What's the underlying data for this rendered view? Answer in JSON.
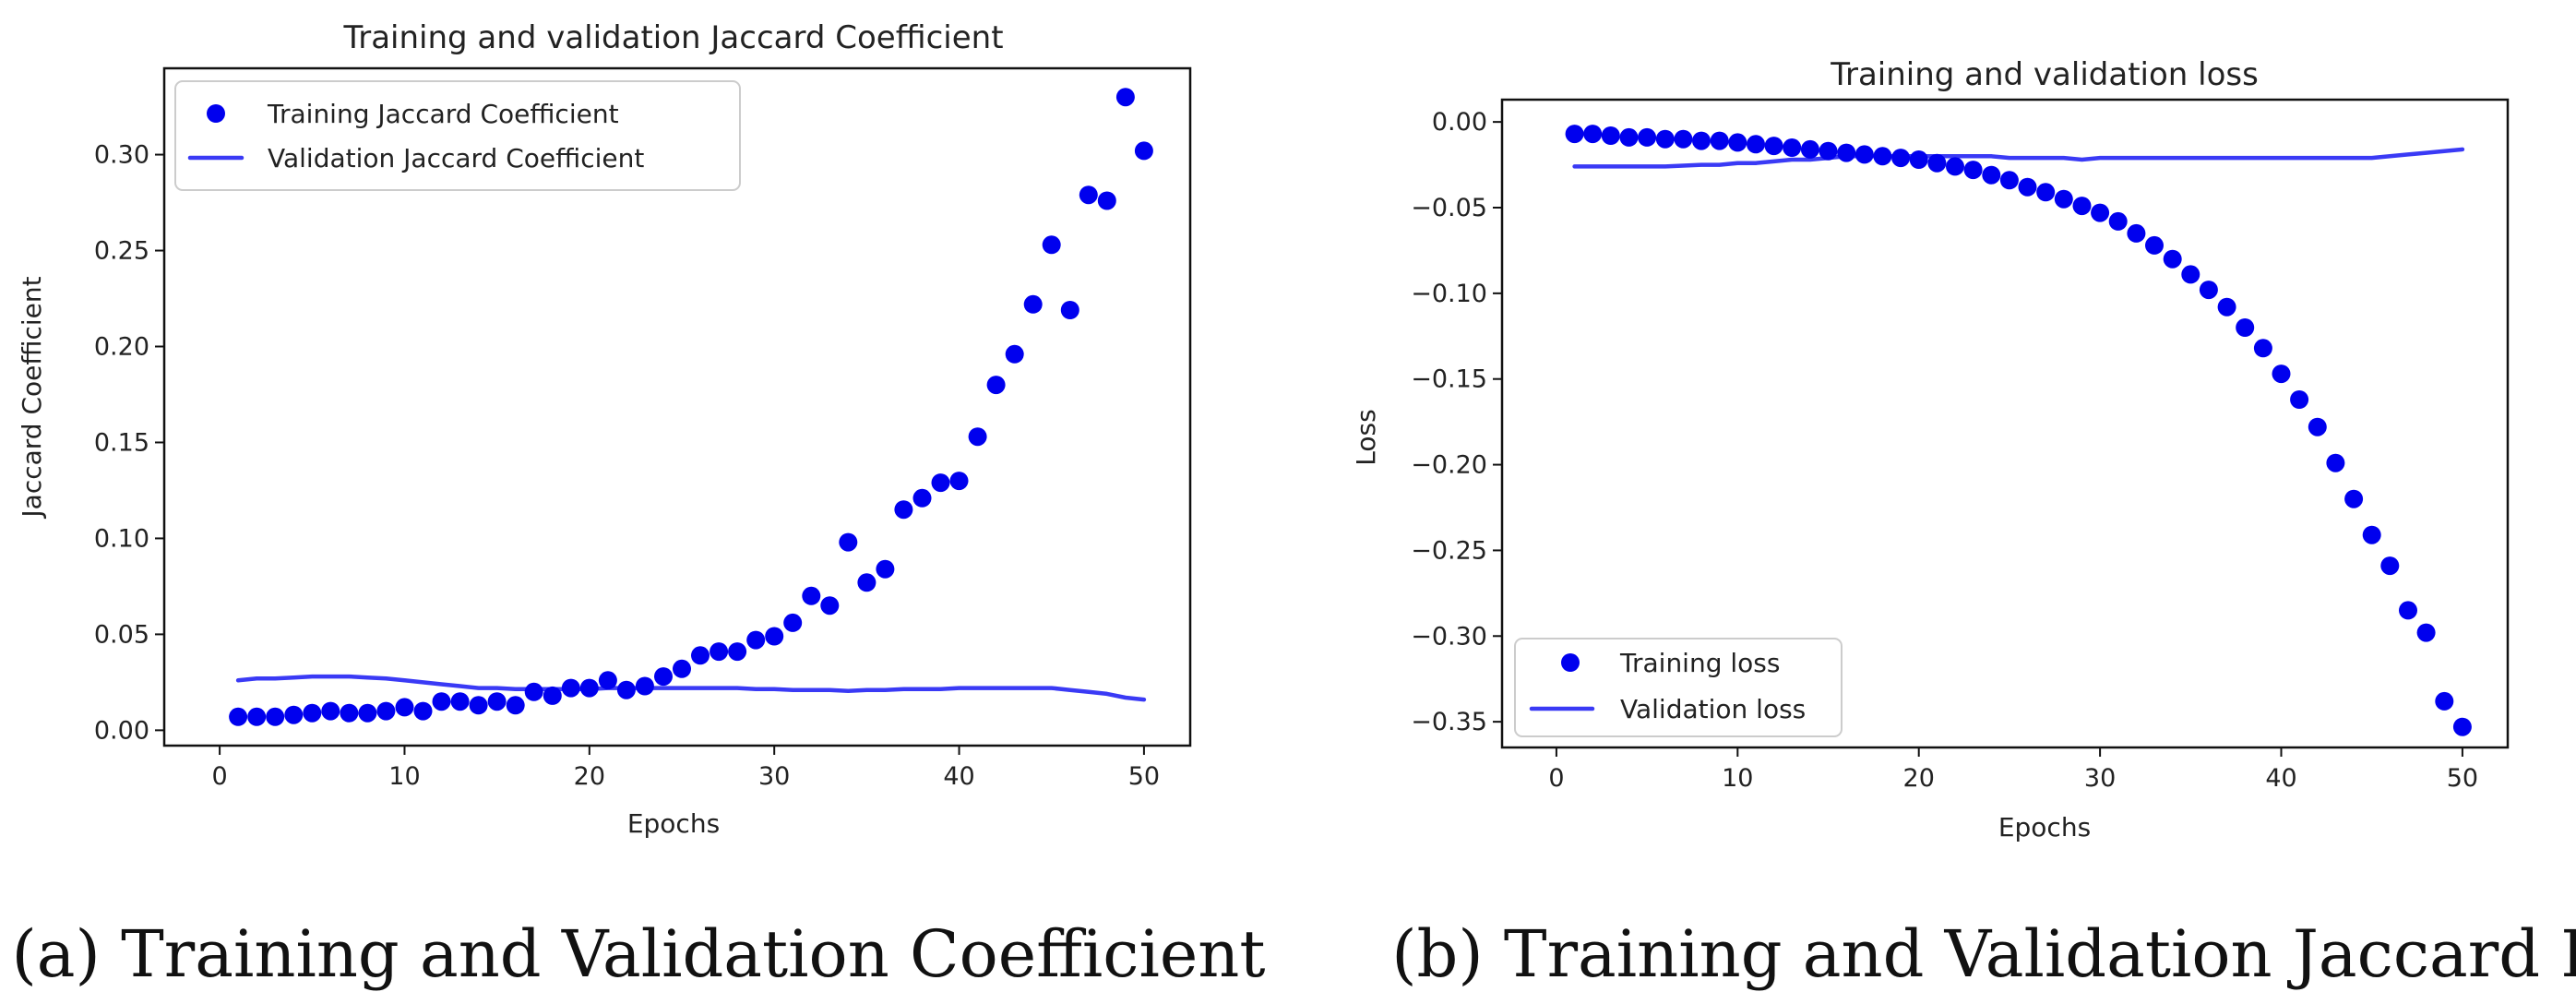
{
  "chart_data": [
    {
      "type": "line",
      "title": "Training and validation Jaccard Coefficient",
      "xlabel": "Epochs",
      "ylabel": "Jaccard Coefficient",
      "xlim": [
        -3,
        52.5
      ],
      "ylim": [
        -0.008,
        0.345
      ],
      "xticks": [
        0,
        10,
        20,
        30,
        40,
        50
      ],
      "xtick_labels": [
        "0",
        "10",
        "20",
        "30",
        "40",
        "50"
      ],
      "yticks": [
        0.0,
        0.05,
        0.1,
        0.15,
        0.2,
        0.25,
        0.3
      ],
      "ytick_labels": [
        "0.00",
        "0.05",
        "0.10",
        "0.15",
        "0.20",
        "0.25",
        "0.30"
      ],
      "legend_position": "top-left",
      "caption": "(a) Training and Validation Coefficient",
      "x": [
        1,
        2,
        3,
        4,
        5,
        6,
        7,
        8,
        9,
        10,
        11,
        12,
        13,
        14,
        15,
        16,
        17,
        18,
        19,
        20,
        21,
        22,
        23,
        24,
        25,
        26,
        27,
        28,
        29,
        30,
        31,
        32,
        33,
        34,
        35,
        36,
        37,
        38,
        39,
        40,
        41,
        42,
        43,
        44,
        45,
        46,
        47,
        48,
        49,
        50
      ],
      "series": [
        {
          "name": "Training Jaccard Coefficient",
          "style": "dots",
          "color": "#0000ee",
          "values": [
            0.007,
            0.007,
            0.007,
            0.008,
            0.009,
            0.01,
            0.009,
            0.009,
            0.01,
            0.012,
            0.01,
            0.015,
            0.015,
            0.013,
            0.015,
            0.013,
            0.02,
            0.018,
            0.022,
            0.022,
            0.026,
            0.021,
            0.023,
            0.028,
            0.032,
            0.039,
            0.041,
            0.041,
            0.047,
            0.049,
            0.056,
            0.07,
            0.065,
            0.098,
            0.077,
            0.084,
            0.115,
            0.121,
            0.129,
            0.13,
            0.153,
            0.18,
            0.196,
            0.222,
            0.253,
            0.219,
            0.279,
            0.276,
            0.33,
            0.302
          ]
        },
        {
          "name": "Validation Jaccard Coefficient",
          "style": "line",
          "color": "#3a3af5",
          "values": [
            0.026,
            0.027,
            0.027,
            0.0275,
            0.028,
            0.028,
            0.028,
            0.0275,
            0.027,
            0.026,
            0.025,
            0.024,
            0.023,
            0.022,
            0.022,
            0.0215,
            0.0215,
            0.0215,
            0.0215,
            0.0215,
            0.022,
            0.022,
            0.022,
            0.022,
            0.022,
            0.022,
            0.022,
            0.022,
            0.0215,
            0.0215,
            0.021,
            0.021,
            0.021,
            0.0205,
            0.021,
            0.021,
            0.0215,
            0.0215,
            0.0215,
            0.022,
            0.022,
            0.022,
            0.022,
            0.022,
            0.022,
            0.021,
            0.02,
            0.019,
            0.017,
            0.016
          ]
        }
      ]
    },
    {
      "type": "line",
      "title": "Training and validation loss",
      "xlabel": "Epochs",
      "ylabel": "Loss",
      "xlim": [
        -3,
        52.5
      ],
      "ylim": [
        -0.365,
        0.013
      ],
      "xticks": [
        0,
        10,
        20,
        30,
        40,
        50
      ],
      "xtick_labels": [
        "0",
        "10",
        "20",
        "30",
        "40",
        "50"
      ],
      "yticks": [
        0.0,
        -0.05,
        -0.1,
        -0.15,
        -0.2,
        -0.25,
        -0.3,
        -0.35
      ],
      "ytick_labels": [
        "0.00",
        "−0.05",
        "−0.10",
        "−0.15",
        "−0.20",
        "−0.25",
        "−0.30",
        "−0.35"
      ],
      "legend_position": "bottom-left",
      "caption": "(b) Training and Validation Jaccard Loss",
      "x": [
        1,
        2,
        3,
        4,
        5,
        6,
        7,
        8,
        9,
        10,
        11,
        12,
        13,
        14,
        15,
        16,
        17,
        18,
        19,
        20,
        21,
        22,
        23,
        24,
        25,
        26,
        27,
        28,
        29,
        30,
        31,
        32,
        33,
        34,
        35,
        36,
        37,
        38,
        39,
        40,
        41,
        42,
        43,
        44,
        45,
        46,
        47,
        48,
        49,
        50
      ],
      "series": [
        {
          "name": "Training loss",
          "style": "dots",
          "color": "#0000ee",
          "values": [
            -0.007,
            -0.007,
            -0.008,
            -0.009,
            -0.009,
            -0.01,
            -0.01,
            -0.011,
            -0.011,
            -0.012,
            -0.013,
            -0.014,
            -0.015,
            -0.016,
            -0.017,
            -0.018,
            -0.019,
            -0.02,
            -0.021,
            -0.022,
            -0.024,
            -0.026,
            -0.028,
            -0.031,
            -0.034,
            -0.038,
            -0.041,
            -0.045,
            -0.049,
            -0.053,
            -0.058,
            -0.065,
            -0.072,
            -0.08,
            -0.089,
            -0.098,
            -0.108,
            -0.12,
            -0.132,
            -0.147,
            -0.162,
            -0.178,
            -0.199,
            -0.22,
            -0.241,
            -0.259,
            -0.285,
            -0.298,
            -0.338,
            -0.353
          ]
        },
        {
          "name": "Validation loss",
          "style": "line",
          "color": "#3a3af5",
          "values": [
            -0.026,
            -0.026,
            -0.026,
            -0.026,
            -0.026,
            -0.026,
            -0.0255,
            -0.025,
            -0.025,
            -0.024,
            -0.024,
            -0.023,
            -0.022,
            -0.022,
            -0.021,
            -0.02,
            -0.02,
            -0.02,
            -0.02,
            -0.02,
            -0.02,
            -0.02,
            -0.02,
            -0.02,
            -0.021,
            -0.021,
            -0.021,
            -0.021,
            -0.022,
            -0.021,
            -0.021,
            -0.021,
            -0.021,
            -0.021,
            -0.021,
            -0.021,
            -0.021,
            -0.021,
            -0.021,
            -0.021,
            -0.021,
            -0.021,
            -0.021,
            -0.021,
            -0.021,
            -0.02,
            -0.019,
            -0.018,
            -0.017,
            -0.016
          ]
        }
      ]
    }
  ]
}
